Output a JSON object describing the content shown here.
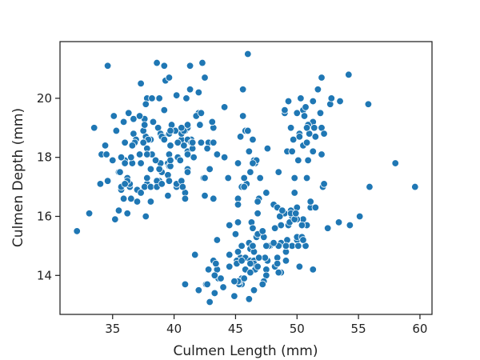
{
  "chart_data": {
    "type": "scatter",
    "x_label": "Culmen Length (mm)",
    "y_label": "Culmen Depth (mm)",
    "color": "#1f77b4",
    "grid": false,
    "xlim": [
      30.72,
      60.98
    ],
    "ylim": [
      12.68,
      21.92
    ],
    "xticks": [
      35,
      40,
      45,
      50,
      55,
      60
    ],
    "yticks": [
      14,
      16,
      18,
      20
    ],
    "x": [
      39.1,
      39.5,
      40.3,
      36.7,
      39.3,
      38.9,
      39.2,
      34.1,
      42.0,
      37.8,
      37.8,
      41.1,
      38.6,
      34.6,
      36.6,
      38.7,
      42.5,
      34.4,
      46.0,
      37.8,
      37.7,
      35.9,
      38.2,
      38.8,
      35.3,
      40.6,
      40.5,
      37.9,
      40.5,
      39.5,
      37.2,
      39.5,
      40.9,
      36.4,
      39.2,
      38.8,
      42.2,
      37.6,
      39.8,
      36.5,
      40.8,
      36.0,
      44.1,
      37.0,
      39.6,
      41.1,
      37.5,
      36.0,
      42.3,
      39.6,
      40.1,
      35.0,
      42.0,
      34.5,
      41.4,
      39.0,
      40.6,
      36.5,
      37.6,
      35.7,
      41.3,
      37.6,
      41.1,
      36.4,
      41.6,
      35.5,
      41.1,
      35.9,
      41.8,
      33.5,
      39.7,
      39.6,
      45.8,
      35.5,
      42.8,
      40.9,
      37.2,
      36.2,
      42.1,
      34.6,
      42.9,
      36.7,
      35.1,
      37.3,
      41.3,
      36.3,
      36.9,
      38.3,
      38.9,
      35.7,
      41.1,
      34.0,
      39.6,
      36.2,
      40.8,
      38.1,
      40.3,
      33.1,
      43.2,
      35.0,
      41.0,
      37.7,
      37.8,
      37.9,
      39.7,
      38.6,
      38.2,
      38.1,
      43.2,
      38.1,
      45.6,
      39.7,
      42.2,
      39.6,
      42.7,
      38.6,
      37.3,
      35.7,
      41.1,
      36.2,
      37.7,
      40.2,
      41.4,
      35.2,
      40.6,
      38.8,
      41.5,
      39.0,
      44.1,
      38.5,
      43.1,
      36.8,
      37.5,
      38.1,
      41.1,
      35.6,
      40.2,
      37.0,
      39.7,
      40.2,
      40.6,
      32.1,
      40.7,
      37.3,
      39.0,
      39.2,
      36.6,
      36.0,
      37.8,
      36.0,
      41.5,
      46.5,
      50.0,
      51.3,
      45.4,
      52.7,
      45.2,
      46.1,
      51.3,
      46.0,
      51.3,
      46.6,
      51.7,
      47.0,
      52.0,
      45.9,
      50.5,
      50.3,
      58.0,
      46.4,
      49.2,
      42.4,
      48.5,
      43.2,
      50.6,
      46.7,
      52.0,
      50.5,
      49.5,
      46.4,
      52.8,
      40.9,
      54.2,
      42.5,
      51.0,
      49.7,
      47.5,
      47.6,
      52.0,
      46.9,
      53.5,
      49.0,
      46.2,
      50.9,
      45.5,
      50.9,
      50.8,
      50.1,
      49.0,
      51.5,
      49.8,
      48.1,
      51.4,
      45.7,
      50.7,
      42.5,
      52.2,
      45.2,
      49.3,
      50.2,
      45.6,
      51.9,
      46.8,
      45.7,
      55.8,
      43.5,
      49.6,
      50.8,
      50.2,
      46.1,
      50.0,
      48.7,
      50.0,
      47.6,
      46.5,
      45.4,
      46.7,
      43.3,
      46.8,
      40.9,
      49.0,
      45.5,
      48.4,
      45.8,
      49.3,
      42.0,
      49.2,
      46.2,
      48.7,
      50.2,
      45.1,
      46.5,
      46.3,
      42.9,
      46.1,
      44.5,
      47.8,
      48.2,
      50.0,
      47.3,
      42.8,
      45.1,
      59.6,
      49.1,
      48.4,
      42.6,
      44.4,
      44.0,
      48.7,
      42.7,
      49.6,
      45.3,
      49.6,
      50.5,
      43.6,
      45.5,
      50.5,
      44.9,
      45.2,
      46.6,
      48.5,
      45.1,
      50.1,
      46.5,
      45.0,
      43.8,
      45.5,
      43.2,
      50.4,
      45.3,
      46.2,
      45.7,
      54.3,
      45.8,
      49.8,
      46.2,
      49.5,
      43.5,
      50.7,
      47.7,
      46.4,
      48.2,
      46.5,
      46.4,
      48.6,
      47.5,
      51.1,
      45.2,
      45.2,
      49.1,
      52.5,
      47.4,
      50.0,
      44.9,
      50.8,
      43.4,
      51.3,
      47.5,
      52.1,
      47.5,
      52.2,
      45.5,
      49.5,
      44.5,
      50.8,
      49.4,
      46.9,
      48.4,
      51.1,
      48.5,
      55.9,
      47.2,
      49.1,
      47.3,
      46.8,
      41.7,
      53.4,
      43.3,
      48.1,
      50.5,
      49.8,
      43.5,
      51.5,
      46.2,
      55.1,
      44.5,
      48.8,
      47.2,
      46.8,
      50.4,
      45.2,
      49.9
    ],
    "values": [
      18.7,
      17.4,
      18.0,
      19.3,
      20.6,
      17.8,
      19.6,
      18.1,
      20.2,
      17.1,
      17.3,
      17.6,
      21.2,
      21.1,
      17.8,
      19.0,
      20.7,
      18.4,
      21.5,
      18.3,
      18.7,
      19.2,
      18.1,
      17.2,
      18.9,
      18.6,
      17.9,
      18.6,
      18.9,
      16.7,
      18.1,
      17.8,
      18.9,
      17.0,
      21.1,
      20.0,
      18.5,
      19.3,
      19.1,
      18.0,
      18.4,
      18.5,
      19.7,
      16.9,
      18.8,
      19.0,
      18.9,
      17.9,
      21.2,
      17.7,
      18.9,
      17.9,
      19.5,
      18.1,
      18.6,
      17.5,
      18.8,
      16.6,
      19.1,
      16.9,
      21.1,
      17.0,
      18.2,
      17.1,
      18.0,
      16.2,
      19.1,
      16.6,
      19.4,
      19.0,
      18.4,
      17.2,
      18.9,
      17.5,
      18.5,
      16.8,
      19.4,
      16.1,
      19.1,
      17.2,
      17.6,
      18.8,
      19.4,
      17.8,
      20.3,
      19.5,
      18.6,
      19.2,
      18.8,
      18.0,
      18.1,
      17.1,
      18.1,
      17.3,
      18.9,
      18.6,
      18.5,
      16.1,
      18.5,
      17.9,
      20.0,
      16.0,
      20.0,
      18.6,
      18.9,
      17.2,
      20.0,
      17.0,
      19.0,
      16.5,
      20.3,
      17.7,
      19.5,
      20.7,
      18.3,
      17.0,
      20.5,
      17.0,
      18.6,
      17.2,
      19.8,
      17.0,
      18.5,
      15.9,
      19.0,
      17.6,
      18.3,
      17.1,
      18.0,
      17.9,
      19.2,
      18.5,
      18.5,
      17.6,
      17.5,
      17.5,
      20.1,
      16.5,
      17.9,
      17.1,
      17.2,
      15.5,
      17.0,
      16.8,
      18.7,
      18.6,
      18.4,
      17.8,
      18.1,
      17.1,
      18.5,
      17.9,
      19.5,
      19.2,
      18.7,
      19.8,
      17.8,
      18.2,
      18.2,
      18.9,
      19.9,
      17.8,
      20.3,
      17.3,
      18.1,
      17.1,
      19.6,
      20.0,
      17.8,
      18.6,
      18.2,
      17.3,
      17.5,
      16.6,
      19.4,
      17.9,
      19.0,
      18.4,
      19.0,
      17.8,
      20.0,
      16.6,
      20.8,
      16.7,
      18.8,
      18.6,
      16.8,
      18.3,
      20.7,
      16.6,
      19.9,
      19.5,
      17.5,
      19.1,
      17.0,
      17.9,
      18.5,
      17.9,
      19.6,
      18.7,
      17.3,
      16.4,
      19.0,
      17.3,
      19.7,
      17.3,
      18.8,
      16.6,
      19.9,
      18.8,
      19.4,
      19.5,
      16.5,
      17.0,
      19.8,
      18.1,
      18.2,
      19.0,
      18.7,
      13.2,
      16.3,
      14.1,
      15.2,
      14.5,
      13.5,
      14.6,
      15.3,
      13.4,
      15.4,
      13.7,
      16.1,
      13.7,
      14.6,
      14.6,
      15.7,
      13.5,
      15.2,
      14.5,
      15.1,
      14.3,
      14.5,
      14.5,
      15.8,
      13.1,
      15.1,
      14.3,
      15.0,
      14.3,
      15.3,
      15.3,
      14.2,
      14.5,
      17.0,
      14.8,
      16.3,
      13.7,
      17.3,
      13.6,
      15.7,
      13.7,
      16.0,
      13.7,
      15.0,
      15.9,
      13.9,
      13.9,
      15.9,
      13.3,
      15.8,
      14.2,
      14.1,
      14.4,
      15.0,
      14.4,
      15.4,
      13.9,
      15.0,
      14.5,
      15.3,
      13.8,
      14.9,
      13.9,
      15.7,
      14.2,
      16.8,
      14.4,
      16.2,
      14.2,
      15.0,
      15.0,
      15.6,
      15.6,
      14.8,
      15.0,
      16.0,
      14.2,
      16.3,
      13.8,
      16.4,
      14.5,
      15.6,
      14.6,
      15.9,
      13.8,
      17.3,
      14.4,
      14.2,
      14.0,
      17.0,
      15.0,
      17.1,
      14.5,
      16.1,
      14.7,
      15.7,
      15.8,
      14.6,
      14.4,
      16.5,
      15.0,
      17.0,
      15.5,
      15.0,
      13.8,
      16.1,
      14.7,
      15.8,
      14.0,
      15.1,
      15.2,
      15.9,
      15.2,
      16.3,
      14.1,
      16.0,
      15.7,
      16.2,
      13.7,
      14.3,
      15.7,
      14.8,
      16.1
    ]
  }
}
